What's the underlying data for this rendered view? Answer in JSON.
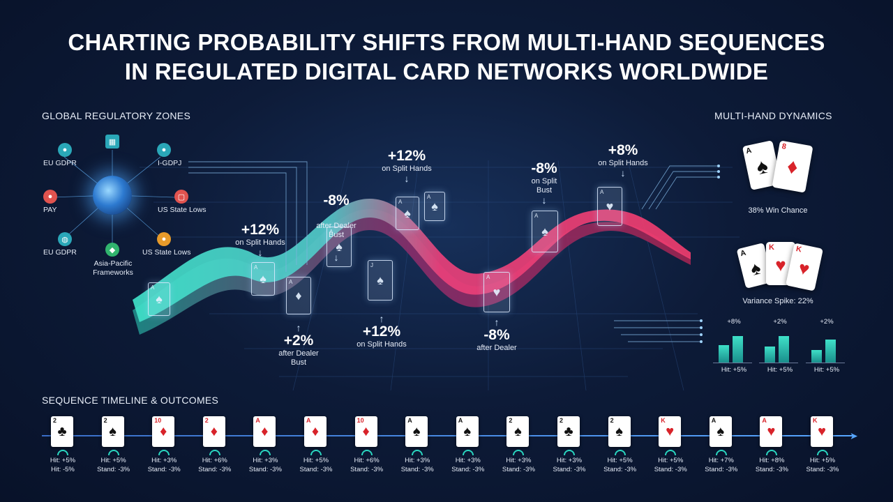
{
  "title_line1": "CHARTING PROBABILITY SHIFTS FROM MULTI-HAND SEQUENCES",
  "title_line2": "IN REGULATED DIGITAL CARD NETWORKS WORLDWIDE",
  "sections": {
    "zones": "GLOBAL REGULATORY ZONES",
    "dynamics": "MULTI-HAND DYNAMICS",
    "timeline": "SEQUENCE TIMELINE & OUTCOMES"
  },
  "zones": [
    {
      "label": "EU GDPR",
      "icon": "person-icon",
      "color": "#2aa7b8"
    },
    {
      "label": "PAY",
      "icon": "people-icon",
      "color": "#e0534f"
    },
    {
      "label": "EU GDPR",
      "icon": "lock-icon",
      "color": "#2aa7b8"
    },
    {
      "label": "Asia-Pacific\nFrameworks",
      "icon": "shield-icon",
      "color": "#31b46e"
    },
    {
      "label": "I-GDPJ",
      "icon": "group-icon",
      "color": "#2aa7b8"
    },
    {
      "label": "US State Lows",
      "icon": "document-icon",
      "color": "#e0534f"
    },
    {
      "label": "US State Lows",
      "icon": "badge-icon",
      "color": "#e79a2a"
    },
    {
      "label": "",
      "icon": "grid-icon",
      "color": "#2aa7b8"
    }
  ],
  "annotations": [
    {
      "pct": "+12%",
      "sub": "on Split Hands"
    },
    {
      "pct": "-8%",
      "sub": "after Dealer\nBust"
    },
    {
      "pct": "+12%",
      "sub": "on Split Hands"
    },
    {
      "pct": "+2%",
      "sub": "after Dealer\nBust"
    },
    {
      "pct": "+12%",
      "sub": "on Split Hands"
    },
    {
      "pct": "-8%",
      "sub": "on Split\nBust"
    },
    {
      "pct": "+8%",
      "sub": "on Split Hands"
    },
    {
      "pct": "-8%",
      "sub": "after Dealer"
    }
  ],
  "dynamics": {
    "win_chance": "38% Win Chance",
    "variance": "Variance Spike: 22%",
    "pair1": [
      {
        "rank": "A",
        "suit": "♠"
      },
      {
        "rank": "8",
        "suit": "♦"
      }
    ],
    "pair2": [
      {
        "rank": "A",
        "suit": "♠"
      },
      {
        "rank": "K",
        "suit": "♥"
      },
      {
        "rank": "K",
        "suit": "♥"
      }
    ],
    "bars": [
      {
        "top": "+8%",
        "bottom": "Hit: +5%",
        "a": 0.5,
        "b": 0.75
      },
      {
        "top": "+2%",
        "bottom": "Hit: +5%",
        "a": 0.45,
        "b": 0.75
      },
      {
        "top": "+2%",
        "bottom": "Hit: +5%",
        "a": 0.35,
        "b": 0.65
      }
    ]
  },
  "timeline": [
    {
      "rank": "2",
      "suit": "♣",
      "red": false,
      "hit": "Hit: +5%",
      "stand": "Hit: -5%"
    },
    {
      "rank": "2",
      "suit": "♠",
      "red": false,
      "hit": "Hit: +5%",
      "stand": "Stand: -3%"
    },
    {
      "rank": "10",
      "suit": "♦",
      "red": true,
      "hit": "Hit: +3%",
      "stand": "Stand: -3%"
    },
    {
      "rank": "2",
      "suit": "♦",
      "red": true,
      "hit": "Hit: +6%",
      "stand": "Stand: -3%"
    },
    {
      "rank": "A",
      "suit": "♦",
      "red": true,
      "hit": "Hit: +3%",
      "stand": "Stand: -3%"
    },
    {
      "rank": "A",
      "suit": "♦",
      "red": true,
      "hit": "Hit: +5%",
      "stand": "Stand: -3%"
    },
    {
      "rank": "10",
      "suit": "♦",
      "red": true,
      "hit": "Hit: +6%",
      "stand": "Stand: -3%"
    },
    {
      "rank": "A",
      "suit": "♠",
      "red": false,
      "hit": "Hit: +3%",
      "stand": "Stand: -3%"
    },
    {
      "rank": "A",
      "suit": "♠",
      "red": false,
      "hit": "Hit: +3%",
      "stand": "Stand: -3%"
    },
    {
      "rank": "2",
      "suit": "♠",
      "red": false,
      "hit": "Hit: +3%",
      "stand": "Stand: -3%"
    },
    {
      "rank": "2",
      "suit": "♣",
      "red": false,
      "hit": "Hit: +3%",
      "stand": "Stand: -3%"
    },
    {
      "rank": "2",
      "suit": "♠",
      "red": false,
      "hit": "Hit: +5%",
      "stand": "Stand: -3%"
    },
    {
      "rank": "K",
      "suit": "♥",
      "red": true,
      "hit": "Hit: +5%",
      "stand": "Stand: -3%"
    },
    {
      "rank": "A",
      "suit": "♠",
      "red": false,
      "hit": "Hit: +7%",
      "stand": "Stand: -3%"
    },
    {
      "rank": "A",
      "suit": "♥",
      "red": true,
      "hit": "Hit: +8%",
      "stand": "Stand: -3%"
    },
    {
      "rank": "K",
      "suit": "♥",
      "red": true,
      "hit": "Hit: +5%",
      "stand": "Stand: -3%"
    }
  ],
  "colors": {
    "teal": "#3fe0c8",
    "pink": "#e8407a",
    "accent": "#57a6ff"
  }
}
